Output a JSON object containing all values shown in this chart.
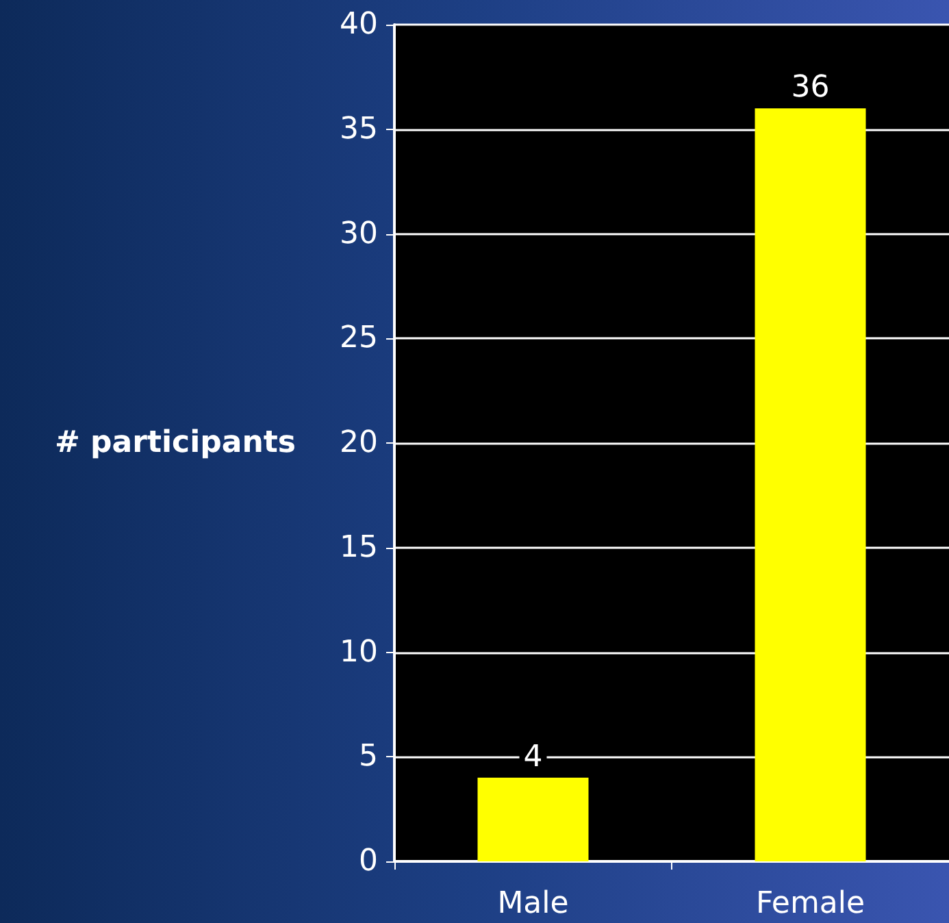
{
  "chart_data": {
    "type": "bar",
    "ylabel": "# participants",
    "categories": [
      "Male",
      "Female"
    ],
    "values": [
      4,
      36
    ],
    "color": "#ffff00",
    "ylim": [
      0,
      40
    ],
    "yticks": [
      0,
      5,
      10,
      15,
      20,
      25,
      30,
      35,
      40
    ],
    "grid": "y",
    "data_labels": true
  }
}
